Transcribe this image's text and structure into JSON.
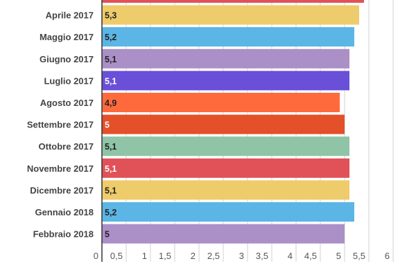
{
  "chart_data": {
    "type": "bar",
    "orientation": "horizontal",
    "categories": [
      "",
      "Aprile 2017",
      "Maggio 2017",
      "Giugno 2017",
      "Luglio 2017",
      "Agosto 2017",
      "Settembre 2017",
      "Ottobre 2017",
      "Novembre 2017",
      "Dicembre 2017",
      "Gennaio 2018",
      "Febbraio 2018"
    ],
    "values": [
      5.4,
      5.3,
      5.2,
      5.1,
      5.1,
      4.9,
      5,
      5.1,
      5.1,
      5.1,
      5.2,
      5
    ],
    "data_labels": [
      "",
      "5,3",
      "5,2",
      "5,1",
      "5,1",
      "4,9",
      "5",
      "5,1",
      "5,1",
      "5,1",
      "5,2",
      "5"
    ],
    "colors": [
      "#e05257",
      "#eecb6b",
      "#5bb5e5",
      "#ab8fc7",
      "#6a4fd8",
      "#fe6a3c",
      "#e3502a",
      "#8fc4a7",
      "#e05257",
      "#eecb6b",
      "#5bb5e5",
      "#ab8fc7"
    ],
    "label_colors": [
      "#fff",
      "#222",
      "#222",
      "#222",
      "#fff",
      "#222",
      "#fff",
      "#222",
      "#fff",
      "#222",
      "#222",
      "#222"
    ],
    "xlim": [
      0,
      6
    ],
    "x_ticks": [
      "0",
      "0,5",
      "1",
      "1,5",
      "2",
      "2,5",
      "3",
      "3,5",
      "4",
      "4,5",
      "5",
      "5,5",
      "6"
    ],
    "grid": true,
    "title": "",
    "xlabel": "",
    "ylabel": ""
  }
}
